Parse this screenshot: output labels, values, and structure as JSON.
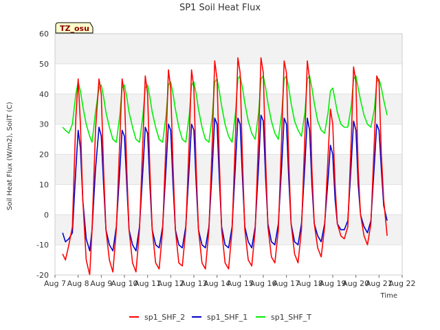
{
  "chart_data": {
    "type": "line",
    "title": "SP1 Soil Heat Flux",
    "xlabel": "Time",
    "ylabel": "Soil Heat Flux (W/m2), SoilT (C)",
    "ylim": [
      -20,
      60
    ],
    "yticks": [
      -20,
      -10,
      0,
      10,
      20,
      30,
      40,
      50,
      60
    ],
    "xlim": [
      7,
      22
    ],
    "xticks": [
      7,
      8,
      9,
      10,
      11,
      12,
      13,
      14,
      15,
      16,
      17,
      18,
      19,
      20,
      21,
      22
    ],
    "xtick_labels": [
      "Aug 7",
      "Aug 8",
      "Aug 9",
      "Aug 10",
      "Aug 11",
      "Aug 12",
      "Aug 13",
      "Aug 14",
      "Aug 15",
      "Aug 16",
      "Aug 17",
      "Aug 18",
      "Aug 19",
      "Aug 20",
      "Aug 21",
      "Aug 22"
    ],
    "grid": "horizontal bands",
    "annotation": "TZ_osu",
    "legend_position": "bottom",
    "series": [
      {
        "name": "sp1_SHF_2",
        "color": "#ff0000",
        "x": [
          7.33,
          7.45,
          7.6,
          7.75,
          7.9,
          8.0,
          8.1,
          8.2,
          8.35,
          8.5,
          8.6,
          8.75,
          8.9,
          9.0,
          9.1,
          9.2,
          9.35,
          9.5,
          9.65,
          9.8,
          9.9,
          10.0,
          10.1,
          10.2,
          10.35,
          10.5,
          10.65,
          10.8,
          10.9,
          11.0,
          11.1,
          11.2,
          11.35,
          11.5,
          11.65,
          11.8,
          11.9,
          12.0,
          12.1,
          12.2,
          12.35,
          12.5,
          12.65,
          12.8,
          12.9,
          13.0,
          13.1,
          13.2,
          13.35,
          13.5,
          13.65,
          13.8,
          13.9,
          14.0,
          14.1,
          14.2,
          14.35,
          14.5,
          14.65,
          14.8,
          14.9,
          15.0,
          15.1,
          15.2,
          15.35,
          15.5,
          15.65,
          15.8,
          15.9,
          16.0,
          16.1,
          16.2,
          16.35,
          16.5,
          16.65,
          16.8,
          16.9,
          17.0,
          17.1,
          17.2,
          17.35,
          17.5,
          17.65,
          17.8,
          17.9,
          18.0,
          18.1,
          18.2,
          18.35,
          18.5,
          18.65,
          18.8,
          18.9,
          19.0,
          19.1,
          19.2,
          19.35,
          19.5,
          19.65,
          19.8,
          19.9,
          20.0,
          20.1,
          20.2,
          20.35,
          20.5,
          20.65,
          20.8,
          20.9,
          21.0,
          21.1,
          21.2,
          21.35
        ],
        "y": [
          -13,
          -15,
          -10,
          -4,
          32,
          45,
          30,
          5,
          -15,
          -20,
          -5,
          28,
          45,
          40,
          15,
          -5,
          -15,
          -19,
          -5,
          25,
          45,
          40,
          15,
          -5,
          -16,
          -19,
          -5,
          25,
          46,
          40,
          15,
          -5,
          -16,
          -18,
          -5,
          25,
          48,
          42,
          16,
          -5,
          -16,
          -17,
          -5,
          25,
          48,
          42,
          15,
          -5,
          -16,
          -18,
          -5,
          25,
          51,
          45,
          18,
          -5,
          -16,
          -18,
          -5,
          27,
          52,
          47,
          18,
          -5,
          -15,
          -17,
          -5,
          27,
          52,
          47,
          18,
          -4,
          -14,
          -16,
          -5,
          27,
          51,
          47,
          18,
          -3,
          -13,
          -16,
          -5,
          27,
          51,
          45,
          15,
          -3,
          -11,
          -14,
          -4,
          20,
          35,
          30,
          10,
          -3,
          -7,
          -8,
          -4,
          25,
          49,
          44,
          15,
          0,
          -7,
          -10,
          -3,
          25,
          46,
          44,
          20,
          5,
          -7
        ]
      },
      {
        "name": "sp1_SHF_1",
        "color": "#0000cc",
        "x": [
          7.33,
          7.45,
          7.6,
          7.75,
          7.9,
          8.0,
          8.1,
          8.2,
          8.35,
          8.5,
          8.6,
          8.75,
          8.9,
          9.0,
          9.1,
          9.2,
          9.35,
          9.5,
          9.65,
          9.8,
          9.9,
          10.0,
          10.1,
          10.2,
          10.35,
          10.5,
          10.65,
          10.8,
          10.9,
          11.0,
          11.1,
          11.2,
          11.35,
          11.5,
          11.65,
          11.8,
          11.9,
          12.0,
          12.1,
          12.2,
          12.35,
          12.5,
          12.65,
          12.8,
          12.9,
          13.0,
          13.1,
          13.2,
          13.35,
          13.5,
          13.65,
          13.8,
          13.9,
          14.0,
          14.1,
          14.2,
          14.35,
          14.5,
          14.65,
          14.8,
          14.9,
          15.0,
          15.1,
          15.2,
          15.35,
          15.5,
          15.65,
          15.8,
          15.9,
          16.0,
          16.1,
          16.2,
          16.35,
          16.5,
          16.65,
          16.8,
          16.9,
          17.0,
          17.1,
          17.2,
          17.35,
          17.5,
          17.65,
          17.8,
          17.9,
          18.0,
          18.1,
          18.2,
          18.35,
          18.5,
          18.65,
          18.8,
          18.9,
          19.0,
          19.1,
          19.2,
          19.35,
          19.5,
          19.65,
          19.8,
          19.9,
          20.0,
          20.1,
          20.2,
          20.35,
          20.5,
          20.65,
          20.8,
          20.9,
          21.0,
          21.1,
          21.2,
          21.35
        ],
        "y": [
          -6,
          -9,
          -8,
          -6,
          15,
          28,
          22,
          5,
          -8,
          -12,
          -5,
          15,
          29,
          26,
          10,
          -5,
          -10,
          -12,
          -4,
          15,
          28,
          26,
          10,
          -5,
          -10,
          -12,
          -4,
          15,
          29,
          27,
          10,
          -5,
          -10,
          -11,
          -4,
          16,
          30,
          28,
          10,
          -5,
          -10,
          -11,
          -4,
          16,
          30,
          28,
          10,
          -5,
          -10,
          -11,
          -4,
          16,
          32,
          30,
          12,
          -4,
          -10,
          -11,
          -4,
          17,
          32,
          30,
          12,
          -4,
          -9,
          -11,
          -4,
          17,
          33,
          31,
          12,
          -3,
          -9,
          -10,
          -3,
          17,
          32,
          30,
          12,
          -3,
          -9,
          -10,
          -3,
          17,
          32,
          28,
          10,
          -3,
          -7,
          -9,
          -3,
          12,
          23,
          20,
          5,
          -3,
          -5,
          -5,
          -2,
          17,
          31,
          28,
          10,
          0,
          -4,
          -6,
          -2,
          17,
          30,
          28,
          15,
          3,
          -2
        ]
      },
      {
        "name": "sp1_SHF_T",
        "color": "#00ee00",
        "x": [
          7.33,
          7.45,
          7.6,
          7.75,
          7.9,
          8.0,
          8.1,
          8.2,
          8.35,
          8.5,
          8.6,
          8.75,
          8.9,
          9.0,
          9.1,
          9.2,
          9.35,
          9.5,
          9.65,
          9.8,
          9.9,
          10.0,
          10.1,
          10.2,
          10.35,
          10.5,
          10.65,
          10.8,
          10.9,
          11.0,
          11.1,
          11.2,
          11.35,
          11.5,
          11.65,
          11.8,
          11.9,
          12.0,
          12.1,
          12.2,
          12.35,
          12.5,
          12.65,
          12.8,
          12.9,
          13.0,
          13.1,
          13.2,
          13.35,
          13.5,
          13.65,
          13.8,
          13.9,
          14.0,
          14.1,
          14.2,
          14.35,
          14.5,
          14.65,
          14.8,
          14.9,
          15.0,
          15.1,
          15.2,
          15.35,
          15.5,
          15.65,
          15.8,
          15.9,
          16.0,
          16.1,
          16.2,
          16.35,
          16.5,
          16.65,
          16.8,
          16.9,
          17.0,
          17.1,
          17.2,
          17.35,
          17.5,
          17.65,
          17.8,
          17.9,
          18.0,
          18.1,
          18.2,
          18.35,
          18.5,
          18.65,
          18.8,
          18.9,
          19.0,
          19.1,
          19.2,
          19.35,
          19.5,
          19.65,
          19.8,
          19.9,
          20.0,
          20.1,
          20.2,
          20.35,
          20.5,
          20.65,
          20.8,
          20.9,
          21.0,
          21.1,
          21.2,
          21.35
        ],
        "y": [
          29,
          28,
          27,
          30,
          40,
          44,
          41,
          36,
          30,
          26,
          24,
          34,
          42,
          43,
          39,
          34,
          29,
          25,
          24,
          33,
          42,
          43,
          39,
          34,
          29,
          25,
          24,
          33,
          42,
          43,
          39,
          34,
          29,
          25,
          24,
          33,
          43,
          44,
          40,
          35,
          29,
          25,
          24,
          33,
          43,
          44,
          40,
          35,
          29,
          25,
          24,
          33,
          44,
          45,
          41,
          36,
          30,
          26,
          24,
          34,
          45,
          46,
          42,
          37,
          31,
          27,
          25,
          34,
          45,
          46,
          42,
          37,
          31,
          27,
          25,
          34,
          45,
          46,
          42,
          37,
          31,
          28,
          26,
          34,
          45,
          46,
          42,
          37,
          31,
          28,
          27,
          34,
          41,
          42,
          38,
          34,
          30,
          29,
          29,
          36,
          45,
          46,
          42,
          38,
          33,
          30,
          29,
          35,
          44,
          45,
          42,
          38,
          33
        ]
      }
    ]
  }
}
